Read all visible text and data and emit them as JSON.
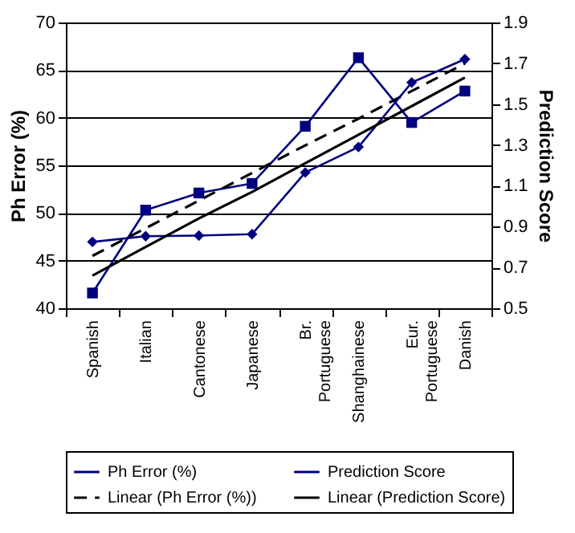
{
  "chart_data": {
    "type": "line",
    "ylabel": "Ph Error (%)",
    "y2label": "Prediction Score",
    "categories": [
      "Spanish",
      "Italian",
      "Cantonese",
      "Japanese",
      "Br. Portuguese",
      "Shanghainese",
      "Eur. Portuguese",
      "Danish"
    ],
    "series": [
      {
        "name": "Ph Error (%)",
        "color": "#000080",
        "marker": "square",
        "line_style": "solid",
        "values": [
          41.6,
          50.3,
          52.1,
          53.1,
          59.1,
          66.3,
          59.5,
          62.8
        ]
      },
      {
        "name": "Prediction Score",
        "color": "#000080",
        "marker": "diamond",
        "line_style": "solid",
        "axis": "y2",
        "values": [
          0.825,
          0.853,
          0.856,
          0.863,
          1.165,
          1.29,
          1.606,
          1.72
        ]
      },
      {
        "name": "Linear (Ph Error (%))",
        "color": "#000000",
        "marker": "none",
        "line_style": "dashed",
        "values": [
          45.5,
          48.4,
          51.3,
          54.2,
          57.1,
          59.9,
          62.8,
          65.7
        ]
      },
      {
        "name": "Linear (Prediction Score)",
        "color": "#000000",
        "marker": "none",
        "line_style": "solid",
        "axis": "y2",
        "values": [
          0.66,
          0.8,
          0.94,
          1.07,
          1.21,
          1.35,
          1.49,
          1.63
        ]
      }
    ],
    "ylim": [
      40,
      70
    ],
    "yticks": [
      40,
      45,
      50,
      55,
      60,
      65,
      70
    ],
    "y2lim": [
      0.5,
      1.9
    ],
    "y2ticks": [
      0.5,
      0.7,
      0.9,
      1.1,
      1.3,
      1.5,
      1.7,
      1.9
    ],
    "grid": "y",
    "legend": "bottom"
  }
}
